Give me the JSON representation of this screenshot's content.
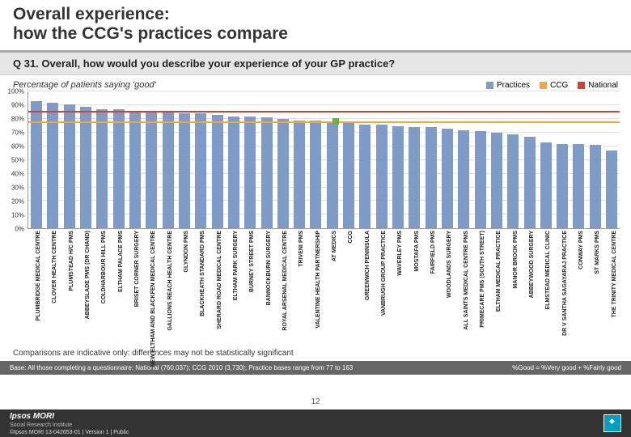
{
  "title_line1": "Overall experience:",
  "title_line2": "how the CCG's practices compare",
  "question": "Q 31. Overall, how would you describe your experience of your GP practice?",
  "subtitle": "Percentage of patients saying 'good'",
  "legend": {
    "practices_label": "Practices",
    "ccg_label": "CCG",
    "national_label": "National"
  },
  "chart": {
    "type": "bar",
    "ylim": [
      0,
      100
    ],
    "ytick_step": 10,
    "ytick_labels": [
      "0%",
      "10%",
      "20%",
      "30%",
      "40%",
      "50%",
      "60%",
      "70%",
      "80%",
      "90%",
      "100%"
    ],
    "bar_color": "#7f9cc8",
    "ccg_line_color": "#f4a933",
    "national_line_color": "#cc4433",
    "ccg_handle_color": "#6fb23a",
    "grid_color": "#e0e0e0",
    "axis_color": "#999999",
    "background": "#ffffff",
    "ccg_value": 77,
    "national_value": 85,
    "bars": [
      {
        "label": "PLUMBRIDGE MEDICAL CENTRE",
        "value": 93
      },
      {
        "label": "CLOVER HEALTH CENTRE",
        "value": 92
      },
      {
        "label": "PLUMSTEAD H/C PMS",
        "value": 91
      },
      {
        "label": "ABBEYSLADE PMS (DR CHAND)",
        "value": 89
      },
      {
        "label": "COLDHARBOUR HILL PMS",
        "value": 87
      },
      {
        "label": "ELTHAM PALACE PMS",
        "value": 87
      },
      {
        "label": "BRISET CORNER SURGERY",
        "value": 86
      },
      {
        "label": "NEW ELTHAM AND BLACKFEN MEDICAL CENTRE",
        "value": 86
      },
      {
        "label": "GALLIONS REACH HEALTH CENTRE",
        "value": 85
      },
      {
        "label": "GLYNDON PMS",
        "value": 84
      },
      {
        "label": "BLACKHEATH STANDARD PMS",
        "value": 84
      },
      {
        "label": "SHERARD ROAD MEDICAL CENTRE",
        "value": 83
      },
      {
        "label": "ELTHAM PARK SURGERY",
        "value": 82
      },
      {
        "label": "BURNEY STREET PMS",
        "value": 82
      },
      {
        "label": "BANNOCKBURN SURGERY",
        "value": 81
      },
      {
        "label": "ROYAL ARSENAL MEDICAL CENTRE",
        "value": 80
      },
      {
        "label": "TRIVENI PMS",
        "value": 79
      },
      {
        "label": "VALENTINE HEALTH PARTNERSHIP",
        "value": 79
      },
      {
        "label": "AT MEDICS",
        "value": 78
      },
      {
        "label": "CCG",
        "value": 77
      },
      {
        "label": "GREENWICH PENINSULA",
        "value": 76
      },
      {
        "label": "VANBRUGH GROUP PRACTICE",
        "value": 76
      },
      {
        "label": "WAVERLEY PMS",
        "value": 75
      },
      {
        "label": "MOSTAFA PMS",
        "value": 74
      },
      {
        "label": "FAIRFIELD PMS",
        "value": 74
      },
      {
        "label": "WOODLANDS SURGERY",
        "value": 73
      },
      {
        "label": "ALL SAINTS MEDICAL CENTRE PMS",
        "value": 72
      },
      {
        "label": "PRIMECARE PMS (SOUTH STREET)",
        "value": 71
      },
      {
        "label": "ELTHAM MEDICAL PRACTICE",
        "value": 70
      },
      {
        "label": "MANOR BROOK PMS",
        "value": 69
      },
      {
        "label": "ABBEYWOOD SURGERY",
        "value": 67
      },
      {
        "label": "ELMSTEAD MEDICAL CLINIC",
        "value": 63
      },
      {
        "label": "DR V SANTHA SAGAYARAJ PRACTICE",
        "value": 62
      },
      {
        "label": "CONWAY PMS",
        "value": 62
      },
      {
        "label": "ST MARKS PMS",
        "value": 61
      },
      {
        "label": "THE TRINITY MEDICAL CENTRE",
        "value": 57
      }
    ]
  },
  "comparison_note": "Comparisons are indicative only: differences may not be statistically significant",
  "base_text": "Base: All those completing a questionnaire: National (760,037); CCG 2010 (3,730); Practice bases range from 77 to 163",
  "good_note": "%Good = %Very good + %Fairly good",
  "page_number": "12",
  "footer": {
    "brand": "Ipsos MORI",
    "sub": "Social Research Institute",
    "copyright": "©Ipsos MORI    13-042653-01 | Version 1 | Public"
  }
}
